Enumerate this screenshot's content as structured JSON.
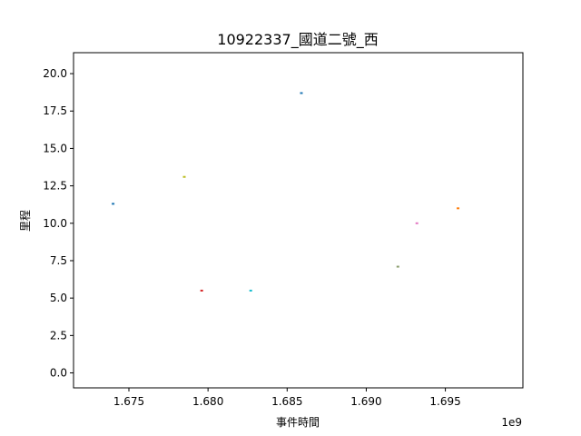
{
  "chart_data": {
    "type": "scatter",
    "title": "10922337_國道二號_西",
    "xlabel": "事件時間",
    "ylabel": "里程",
    "x_offset_label": "1e9",
    "xlim": [
      1.6715,
      1.6999
    ],
    "ylim": [
      -1.0,
      21.4
    ],
    "x_ticks": [
      1.675,
      1.68,
      1.685,
      1.69,
      1.695
    ],
    "x_tick_labels": [
      "1.675",
      "1.680",
      "1.685",
      "1.690",
      "1.695"
    ],
    "y_ticks": [
      0.0,
      2.5,
      5.0,
      7.5,
      10.0,
      12.5,
      15.0,
      17.5,
      20.0
    ],
    "y_tick_labels": [
      "0.0",
      "2.5",
      "5.0",
      "7.5",
      "10.0",
      "12.5",
      "15.0",
      "17.5",
      "20.0"
    ],
    "grid": false,
    "series": [
      {
        "color": "#1f77b4",
        "points": [
          {
            "x": 1.674,
            "y": 11.3
          }
        ]
      },
      {
        "color": "#bcbd22",
        "points": [
          {
            "x": 1.6785,
            "y": 13.1
          }
        ]
      },
      {
        "color": "#d62728",
        "points": [
          {
            "x": 1.6796,
            "y": 5.5
          }
        ]
      },
      {
        "color": "#17becf",
        "points": [
          {
            "x": 1.6827,
            "y": 5.5
          }
        ]
      },
      {
        "color": "#1f77b4",
        "points": [
          {
            "x": 1.6859,
            "y": 18.7
          }
        ]
      },
      {
        "color": "#8c9e6e",
        "points": [
          {
            "x": 1.692,
            "y": 7.1
          }
        ]
      },
      {
        "color": "#e377c2",
        "points": [
          {
            "x": 1.6932,
            "y": 10.0
          }
        ]
      },
      {
        "color": "#ff7f0e",
        "points": [
          {
            "x": 1.6958,
            "y": 11.0
          }
        ]
      }
    ]
  }
}
